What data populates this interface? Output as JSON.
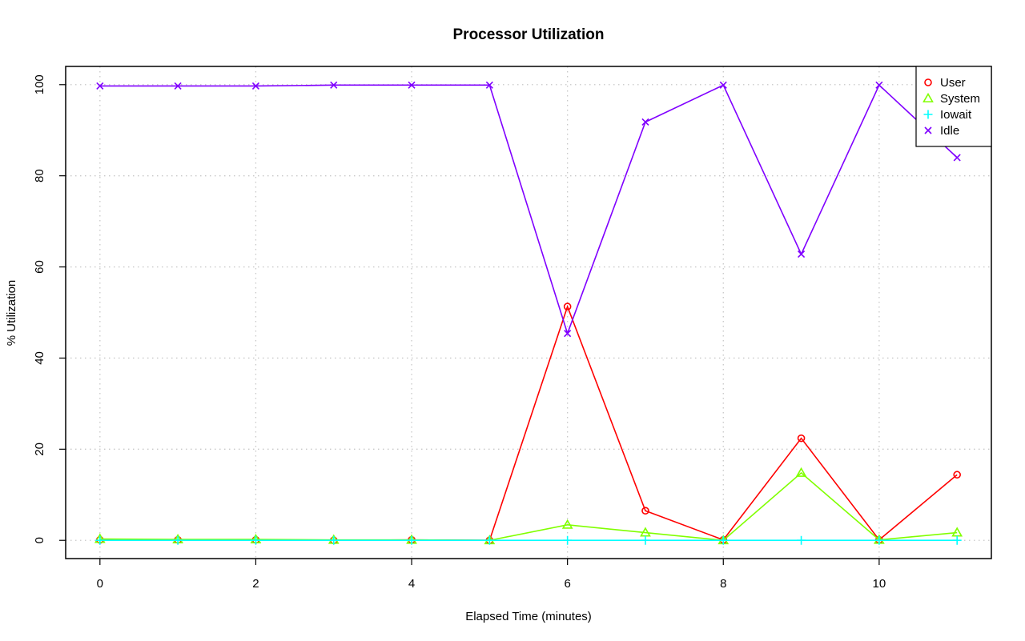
{
  "chart_data": {
    "type": "line",
    "title": "Processor Utilization",
    "xlabel": "Elapsed Time (minutes)",
    "ylabel": "% Utilization",
    "xlim": [
      -0.44,
      11.44
    ],
    "ylim": [
      -4,
      104
    ],
    "x_ticks": [
      0,
      2,
      4,
      6,
      8,
      10
    ],
    "y_ticks": [
      0,
      20,
      40,
      60,
      80,
      100
    ],
    "grid": true,
    "legend_position": "top-right",
    "x": [
      0,
      1,
      2,
      3,
      4,
      5,
      6,
      7,
      8,
      9,
      10,
      11
    ],
    "series": [
      {
        "name": "User",
        "color": "#ff0000",
        "marker": "circle",
        "values": [
          0.1,
          0.1,
          0.1,
          0.0,
          0.1,
          0.0,
          51.3,
          6.5,
          0.1,
          22.4,
          0.1,
          14.4
        ]
      },
      {
        "name": "System",
        "color": "#80ff00",
        "marker": "triangle",
        "values": [
          0.3,
          0.2,
          0.2,
          0.1,
          0.1,
          0.0,
          3.4,
          1.7,
          0.0,
          14.8,
          0.1,
          1.7
        ]
      },
      {
        "name": "Iowait",
        "color": "#00ffff",
        "marker": "plus",
        "values": [
          0.0,
          0.0,
          0.0,
          0.0,
          0.0,
          0.0,
          0.0,
          0.0,
          0.0,
          0.0,
          0.0,
          0.0
        ]
      },
      {
        "name": "Idle",
        "color": "#8000ff",
        "marker": "cross",
        "values": [
          99.7,
          99.7,
          99.7,
          99.9,
          99.9,
          99.9,
          45.4,
          91.8,
          99.9,
          62.8,
          99.9,
          84.0
        ]
      }
    ]
  }
}
